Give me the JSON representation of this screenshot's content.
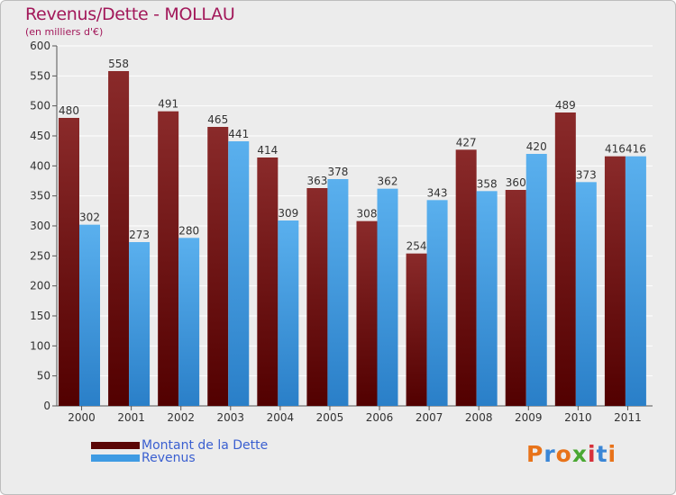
{
  "title": "Revenus/Dette - MOLLAU",
  "subtitle": "(en milliers d'€)",
  "logo_text": "Proxiti",
  "colors": {
    "dette": "#6b0d0d",
    "revenus": "#3f9be3",
    "title": "#a2185a",
    "legend_text": "#3a5fd0",
    "background": "#ececec"
  },
  "chart_data": {
    "type": "bar",
    "title": "Revenus/Dette - MOLLAU",
    "subtitle": "(en milliers d'€)",
    "xlabel": "",
    "ylabel": "",
    "ylim": [
      0,
      600
    ],
    "yticks": [
      0,
      50,
      100,
      150,
      200,
      250,
      300,
      350,
      400,
      450,
      500,
      550,
      600
    ],
    "grid": true,
    "legend_placement": "bottom-left",
    "categories": [
      "2000",
      "2001",
      "2002",
      "2003",
      "2004",
      "2005",
      "2006",
      "2007",
      "2008",
      "2009",
      "2010",
      "2011"
    ],
    "series": [
      {
        "name": "Montant de la Dette",
        "values": [
          480,
          558,
          491,
          465,
          414,
          363,
          308,
          254,
          427,
          360,
          489,
          416
        ]
      },
      {
        "name": "Revenus",
        "values": [
          302,
          273,
          280,
          441,
          309,
          378,
          362,
          343,
          358,
          420,
          373,
          416
        ]
      }
    ]
  }
}
